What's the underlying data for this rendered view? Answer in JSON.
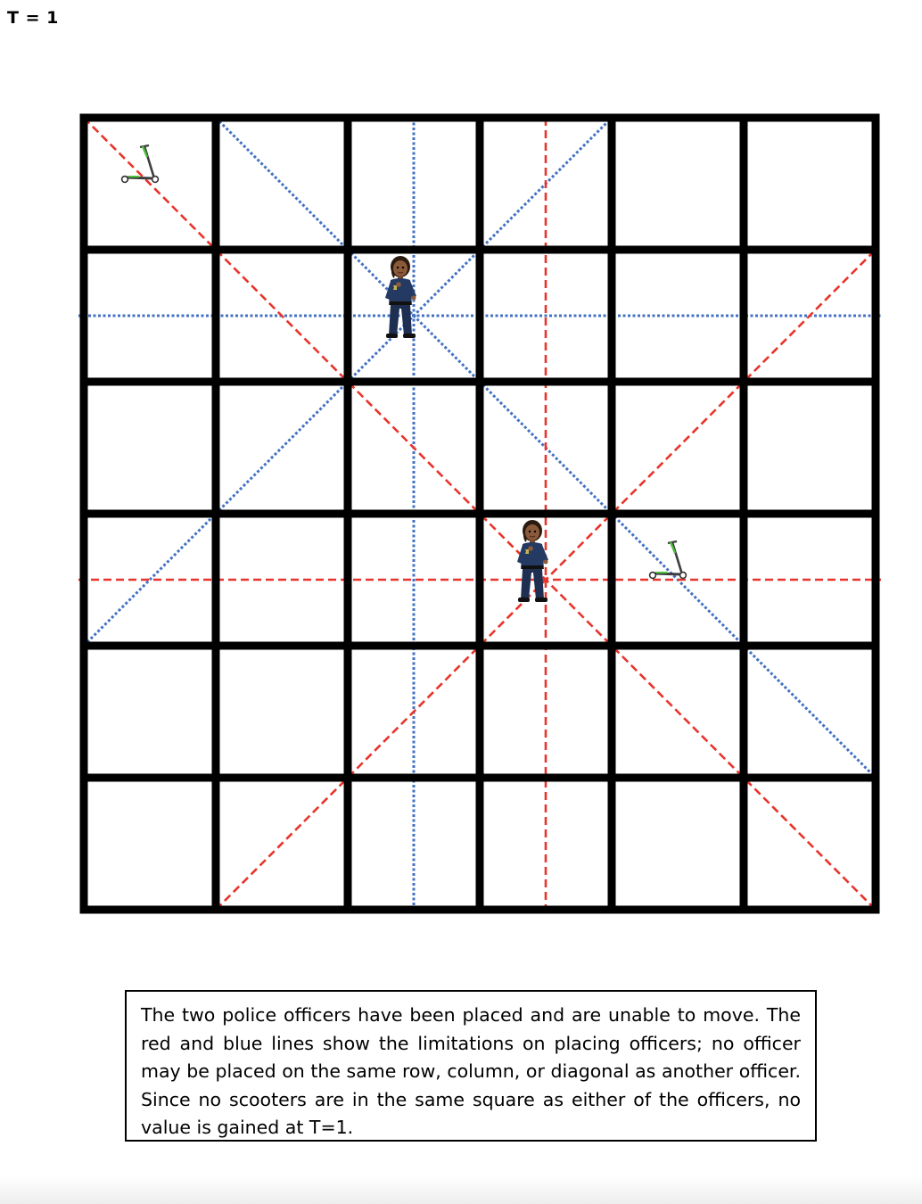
{
  "time_label": "T = 1",
  "board": {
    "rows": 6,
    "cols": 6,
    "officers": [
      {
        "row": 2,
        "col": 3
      },
      {
        "row": 4,
        "col": 4
      }
    ],
    "scooters": [
      {
        "row": 1,
        "col": 1
      },
      {
        "row": 4,
        "col": 5
      }
    ],
    "line_colors": {
      "officer_1": "#4472c4",
      "officer_2": "#e8342c"
    },
    "grid_color": "#000000"
  },
  "caption": "The two police officers have been placed and are unable to move.  The red and blue lines show the limitations on placing officers; no officer may be placed on the same row, column, or diagonal as another officer.  Since no scooters are in the same square as either of the officers, no value is gained at T=1."
}
